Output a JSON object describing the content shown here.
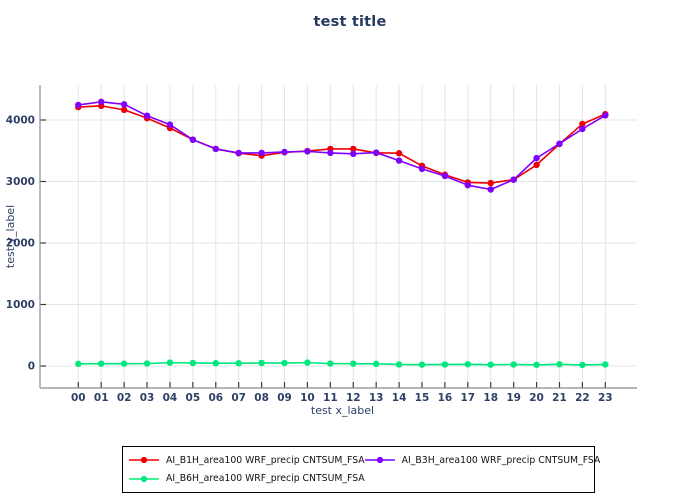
{
  "chart_data": {
    "type": "line",
    "title": "test title",
    "xlabel": "test x_label",
    "ylabel": "test y_label",
    "x": [
      "00",
      "01",
      "02",
      "03",
      "04",
      "05",
      "06",
      "07",
      "08",
      "09",
      "10",
      "11",
      "12",
      "13",
      "14",
      "15",
      "16",
      "17",
      "18",
      "19",
      "20",
      "21",
      "22",
      "23"
    ],
    "yticks": [
      0,
      1000,
      2000,
      3000,
      4000
    ],
    "ylim": [
      -350,
      4570
    ],
    "grid": true,
    "legend_position": "bottom-center",
    "text_color": "#2e4066",
    "series": [
      {
        "name": "AI_B1H_area100 WRF_precip CNTSUM_FSA",
        "color": "#ee0000",
        "marker": "circle",
        "values": [
          4210,
          4230,
          4165,
          4030,
          3870,
          3680,
          3530,
          3460,
          3420,
          3475,
          3495,
          3530,
          3530,
          3465,
          3460,
          3255,
          3110,
          2985,
          2975,
          3030,
          3270,
          3610,
          3935,
          4095
        ]
      },
      {
        "name": "AI_B3H_area100 WRF_precip CNTSUM_FSA",
        "color": "#7f00ff",
        "marker": "circle",
        "values": [
          4245,
          4295,
          4255,
          4070,
          3925,
          3680,
          3530,
          3465,
          3465,
          3480,
          3490,
          3465,
          3450,
          3470,
          3340,
          3205,
          3090,
          2940,
          2870,
          3030,
          3380,
          3615,
          3855,
          4075
        ]
      },
      {
        "name": "AI_B6H_area100 WRF_precip CNTSUM_FSA",
        "color": "#00e87c",
        "marker": "circle",
        "values": [
          35,
          38,
          38,
          40,
          55,
          50,
          45,
          45,
          50,
          48,
          55,
          40,
          38,
          35,
          25,
          22,
          25,
          28,
          22,
          25,
          20,
          28,
          18,
          25
        ]
      }
    ]
  }
}
